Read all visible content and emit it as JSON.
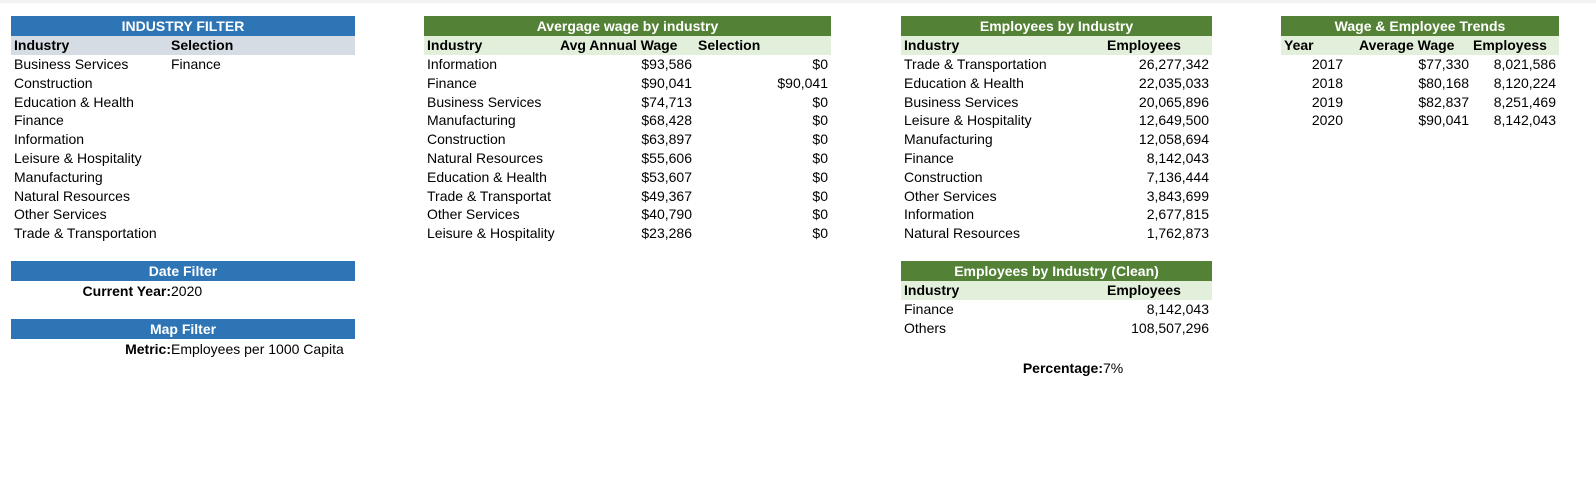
{
  "industry_filter": {
    "title": "INDUSTRY FILTER",
    "col_industry": "Industry",
    "col_selection": "Selection",
    "selection_value": "Finance",
    "items": [
      "Business Services",
      "Construction",
      "Education & Health",
      "Finance",
      "Information",
      "Leisure & Hospitality",
      "Manufacturing",
      "Natural Resources",
      "Other Services",
      "Trade & Transportation"
    ]
  },
  "date_filter": {
    "title": "Date Filter",
    "label": "Current Year:",
    "value": "2020"
  },
  "map_filter": {
    "title": "Map Filter",
    "label": "Metric:",
    "value": "Employees per 1000 Capita"
  },
  "avg_wage": {
    "title": "Avergage wage by industry",
    "col_industry": "Industry",
    "col_wage": "Avg Annual Wage",
    "col_selection": "Selection",
    "rows": [
      {
        "industry": "Information",
        "wage": "$93,586",
        "selection": "$0"
      },
      {
        "industry": "Finance",
        "wage": "$90,041",
        "selection": "$90,041"
      },
      {
        "industry": "Business Services",
        "wage": "$74,713",
        "selection": "$0"
      },
      {
        "industry": "Manufacturing",
        "wage": "$68,428",
        "selection": "$0"
      },
      {
        "industry": "Construction",
        "wage": "$63,897",
        "selection": "$0"
      },
      {
        "industry": "Natural Resources",
        "wage": "$55,606",
        "selection": "$0"
      },
      {
        "industry": "Education & Health",
        "wage": "$53,607",
        "selection": "$0"
      },
      {
        "industry": "Trade & Transportat",
        "wage": "$49,367",
        "selection": "$0"
      },
      {
        "industry": "Other Services",
        "wage": "$40,790",
        "selection": "$0"
      },
      {
        "industry": "Leisure & Hospitality",
        "wage": "$23,286",
        "selection": "$0"
      }
    ]
  },
  "employees": {
    "title": "Employees by Industry",
    "col_industry": "Industry",
    "col_employees": "Employees",
    "rows": [
      {
        "industry": "Trade & Transportation",
        "employees": "26,277,342"
      },
      {
        "industry": "Education & Health",
        "employees": "22,035,033"
      },
      {
        "industry": "Business Services",
        "employees": "20,065,896"
      },
      {
        "industry": "Leisure & Hospitality",
        "employees": "12,649,500"
      },
      {
        "industry": "Manufacturing",
        "employees": "12,058,694"
      },
      {
        "industry": "Finance",
        "employees": "8,142,043"
      },
      {
        "industry": "Construction",
        "employees": "7,136,444"
      },
      {
        "industry": "Other Services",
        "employees": "3,843,699"
      },
      {
        "industry": "Information",
        "employees": "2,677,815"
      },
      {
        "industry": "Natural Resources",
        "employees": "1,762,873"
      }
    ]
  },
  "employees_clean": {
    "title": "Employees by Industry (Clean)",
    "col_industry": "Industry",
    "col_employees": "Employees",
    "rows": [
      {
        "industry": "Finance",
        "employees": "8,142,043"
      },
      {
        "industry": "Others",
        "employees": "108,507,296"
      }
    ],
    "percentage_label": "Percentage:",
    "percentage_value": "7%"
  },
  "trends": {
    "title": "Wage & Employee Trends",
    "col_year": "Year",
    "col_wage": "Average Wage",
    "col_employees": "Employess",
    "rows": [
      {
        "year": "2017",
        "wage": "$77,330",
        "employees": "8,021,586"
      },
      {
        "year": "2018",
        "wage": "$80,168",
        "employees": "8,120,224"
      },
      {
        "year": "2019",
        "wage": "$82,837",
        "employees": "8,251,469"
      },
      {
        "year": "2020",
        "wage": "$90,041",
        "employees": "8,142,043"
      }
    ]
  },
  "colors": {
    "blue_header": "#2e75b6",
    "blue_subheader": "#d6dce4",
    "green_header": "#538135",
    "green_subheader": "#e2efda"
  }
}
